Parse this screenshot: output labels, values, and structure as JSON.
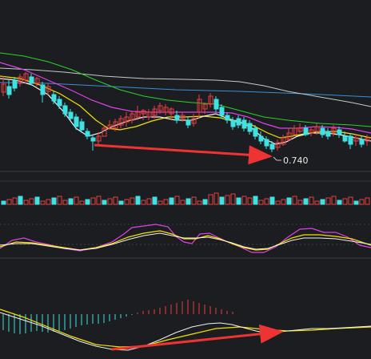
{
  "chart": {
    "low_price_label": "0.740"
  },
  "colors": {
    "background": "#1b1d21",
    "up_candle": "#e8403f",
    "down_candle": "#3ee2e2",
    "ma5": "#f2f2f2",
    "ma10": "#f5e100",
    "ma20": "#e040e8",
    "ma60": "#2cd02c",
    "ma120": "#c8c8c8",
    "ma250": "#3a8fd8",
    "annotation_arrow": "#ee3333",
    "divider": "#3a3d44"
  }
}
